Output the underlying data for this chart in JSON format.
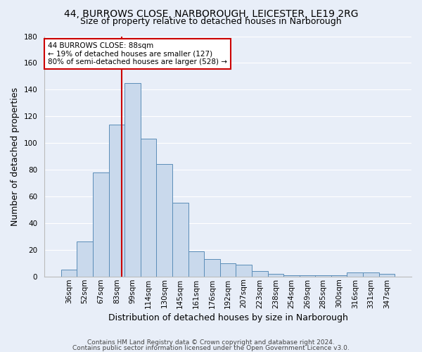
{
  "title1": "44, BURROWS CLOSE, NARBOROUGH, LEICESTER, LE19 2RG",
  "title2": "Size of property relative to detached houses in Narborough",
  "xlabel": "Distribution of detached houses by size in Narborough",
  "ylabel": "Number of detached properties",
  "bar_color": "#c9d9ec",
  "bar_edge_color": "#5b8db8",
  "categories": [
    "36sqm",
    "52sqm",
    "67sqm",
    "83sqm",
    "99sqm",
    "114sqm",
    "130sqm",
    "145sqm",
    "161sqm",
    "176sqm",
    "192sqm",
    "207sqm",
    "223sqm",
    "238sqm",
    "254sqm",
    "269sqm",
    "285sqm",
    "300sqm",
    "316sqm",
    "331sqm",
    "347sqm"
  ],
  "values": [
    5,
    26,
    78,
    114,
    145,
    103,
    84,
    55,
    19,
    13,
    10,
    9,
    4,
    2,
    1,
    1,
    1,
    1,
    3,
    3,
    2
  ],
  "vline_color": "#cc0000",
  "annotation_text": "44 BURROWS CLOSE: 88sqm\n← 19% of detached houses are smaller (127)\n80% of semi-detached houses are larger (528) →",
  "annotation_box_color": "white",
  "annotation_box_edge": "#cc0000",
  "ylim": [
    0,
    180
  ],
  "footnote1": "Contains HM Land Registry data © Crown copyright and database right 2024.",
  "footnote2": "Contains public sector information licensed under the Open Government Licence v3.0.",
  "background_color": "#e8eef8",
  "grid_color": "#ffffff",
  "title_fontsize": 10,
  "subtitle_fontsize": 9,
  "tick_fontsize": 7.5,
  "ylabel_fontsize": 9,
  "xlabel_fontsize": 9
}
